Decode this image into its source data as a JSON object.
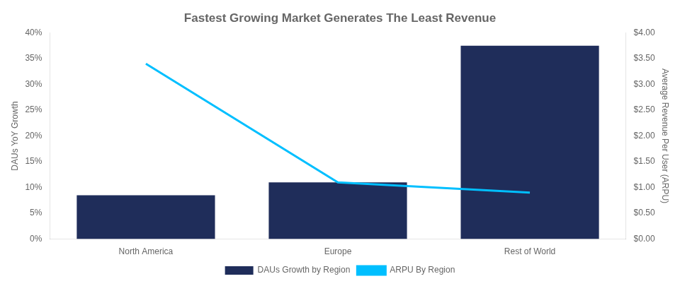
{
  "chart_data": {
    "type": "bar",
    "title": "Fastest Growing Market Generates The Least Revenue",
    "categories": [
      "North America",
      "Europe",
      "Rest of World"
    ],
    "series": [
      {
        "name": "DAUs Growth by Region",
        "type": "bar",
        "color": "#1f2d5a",
        "values": [
          0.085,
          0.11,
          0.375
        ]
      },
      {
        "name": "ARPU By Region",
        "type": "line",
        "color": "#00bfff",
        "values": [
          3.4,
          1.1,
          0.9
        ],
        "axis": "y2",
        "marker": "none"
      }
    ],
    "ylabel": "DAUs YoY Growth",
    "y2label": "Average Revenue Per User (ARPU)",
    "ylim": [
      0,
      0.4
    ],
    "yticks": [
      {
        "value": 0.0,
        "label": "0%"
      },
      {
        "value": 0.05,
        "label": "5%"
      },
      {
        "value": 0.1,
        "label": "10%"
      },
      {
        "value": 0.15,
        "label": "15%"
      },
      {
        "value": 0.2,
        "label": "20%"
      },
      {
        "value": 0.25,
        "label": "25%"
      },
      {
        "value": 0.3,
        "label": "30%"
      },
      {
        "value": 0.35,
        "label": "35%"
      },
      {
        "value": 0.4,
        "label": "40%"
      }
    ],
    "y2lim": [
      0,
      4.0
    ],
    "y2ticks": [
      {
        "value": 0.0,
        "label": "$0.00"
      },
      {
        "value": 0.5,
        "label": "$0.50"
      },
      {
        "value": 1.0,
        "label": "$1.00"
      },
      {
        "value": 1.5,
        "label": "$1.50"
      },
      {
        "value": 2.0,
        "label": "$2.00"
      },
      {
        "value": 2.5,
        "label": "$2.50"
      },
      {
        "value": 3.0,
        "label": "$3.00"
      },
      {
        "value": 3.5,
        "label": "$3.50"
      },
      {
        "value": 4.0,
        "label": "$4.00"
      }
    ],
    "grid": false,
    "legend": "bottom"
  }
}
